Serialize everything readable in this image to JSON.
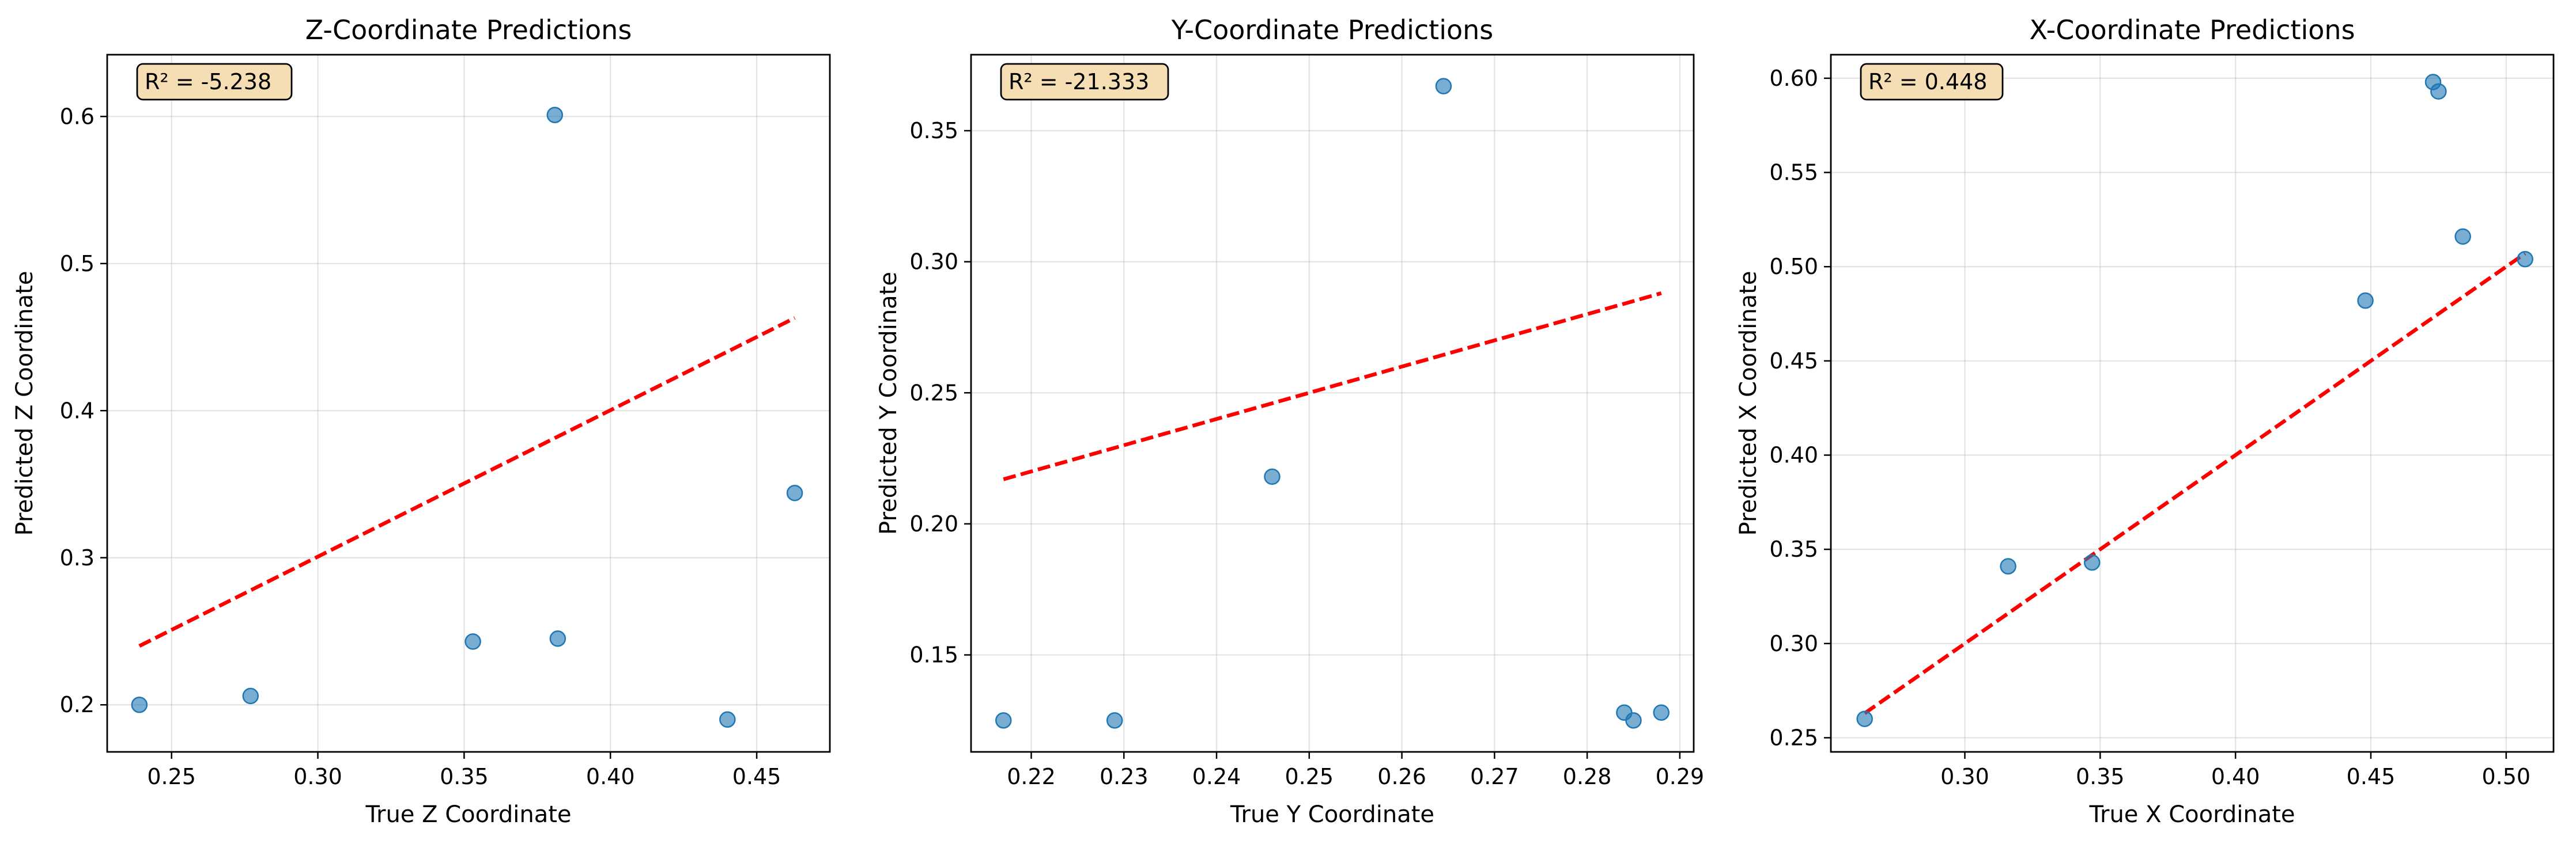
{
  "chart_data": [
    {
      "type": "scatter",
      "title": "Z-Coordinate Predictions",
      "xlabel": "True Z Coordinate",
      "ylabel": "Predicted Z Coordinate",
      "xlim": [
        0.228,
        0.475
      ],
      "ylim": [
        0.168,
        0.642
      ],
      "xticks": [
        0.25,
        0.3,
        0.35,
        0.4,
        0.45
      ],
      "xticklabels": [
        "0.25",
        "0.30",
        "0.35",
        "0.40",
        "0.45"
      ],
      "yticks": [
        0.2,
        0.3,
        0.4,
        0.5,
        0.6
      ],
      "yticklabels": [
        "0.2",
        "0.3",
        "0.4",
        "0.5",
        "0.6"
      ],
      "points": [
        {
          "x": 0.239,
          "y": 0.2
        },
        {
          "x": 0.277,
          "y": 0.206
        },
        {
          "x": 0.353,
          "y": 0.243
        },
        {
          "x": 0.381,
          "y": 0.601
        },
        {
          "x": 0.382,
          "y": 0.245
        },
        {
          "x": 0.44,
          "y": 0.19
        },
        {
          "x": 0.463,
          "y": 0.344
        }
      ],
      "fit_line": [
        {
          "x": 0.239,
          "y": 0.24
        },
        {
          "x": 0.463,
          "y": 0.463
        }
      ],
      "annotation": "R² = -5.238",
      "grid": true,
      "point_color": "#1f77b4",
      "line_color": "#ff0000"
    },
    {
      "type": "scatter",
      "title": "Y-Coordinate Predictions",
      "xlabel": "True Y Coordinate",
      "ylabel": "Predicted Y Coordinate",
      "xlim": [
        0.2135,
        0.2915
      ],
      "ylim": [
        0.113,
        0.379
      ],
      "xticks": [
        0.22,
        0.23,
        0.24,
        0.25,
        0.26,
        0.27,
        0.28,
        0.29
      ],
      "xticklabels": [
        "0.22",
        "0.23",
        "0.24",
        "0.25",
        "0.26",
        "0.27",
        "0.28",
        "0.29"
      ],
      "yticks": [
        0.15,
        0.2,
        0.25,
        0.3,
        0.35
      ],
      "yticklabels": [
        "0.15",
        "0.20",
        "0.25",
        "0.30",
        "0.35"
      ],
      "points": [
        {
          "x": 0.217,
          "y": 0.125
        },
        {
          "x": 0.229,
          "y": 0.125
        },
        {
          "x": 0.246,
          "y": 0.218
        },
        {
          "x": 0.2645,
          "y": 0.367
        },
        {
          "x": 0.284,
          "y": 0.128
        },
        {
          "x": 0.285,
          "y": 0.125
        },
        {
          "x": 0.288,
          "y": 0.128
        }
      ],
      "fit_line": [
        {
          "x": 0.217,
          "y": 0.217
        },
        {
          "x": 0.288,
          "y": 0.288
        }
      ],
      "annotation": "R² = -21.333",
      "grid": true,
      "point_color": "#1f77b4",
      "line_color": "#ff0000"
    },
    {
      "type": "scatter",
      "title": "X-Coordinate Predictions",
      "xlabel": "True X Coordinate",
      "ylabel": "Predicted X Coordinate",
      "xlim": [
        0.2505,
        0.5175
      ],
      "ylim": [
        0.2425,
        0.6125
      ],
      "xticks": [
        0.3,
        0.35,
        0.4,
        0.45,
        0.5
      ],
      "xticklabels": [
        "0.30",
        "0.35",
        "0.40",
        "0.45",
        "0.50"
      ],
      "yticks": [
        0.25,
        0.3,
        0.35,
        0.4,
        0.45,
        0.5,
        0.55,
        0.6
      ],
      "yticklabels": [
        "0.25",
        "0.30",
        "0.35",
        "0.40",
        "0.45",
        "0.50",
        "0.55",
        "0.60"
      ],
      "points": [
        {
          "x": 0.263,
          "y": 0.26
        },
        {
          "x": 0.316,
          "y": 0.341
        },
        {
          "x": 0.347,
          "y": 0.343
        },
        {
          "x": 0.448,
          "y": 0.482
        },
        {
          "x": 0.473,
          "y": 0.598
        },
        {
          "x": 0.475,
          "y": 0.593
        },
        {
          "x": 0.484,
          "y": 0.516
        },
        {
          "x": 0.507,
          "y": 0.504
        }
      ],
      "fit_line": [
        {
          "x": 0.263,
          "y": 0.263
        },
        {
          "x": 0.507,
          "y": 0.507
        }
      ],
      "annotation": "R² = 0.448",
      "grid": true,
      "point_color": "#1f77b4",
      "line_color": "#ff0000"
    }
  ]
}
